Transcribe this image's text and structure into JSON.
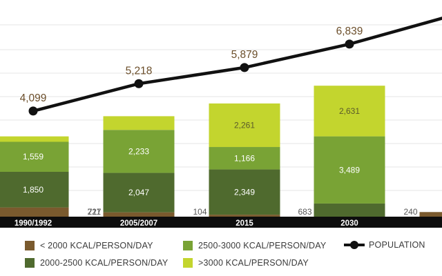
{
  "chart_data": {
    "type": "bar",
    "stacked": true,
    "categories": [
      "1990/1992",
      "2005/2007",
      "2015",
      "2030",
      ""
    ],
    "series": [
      {
        "name": "< 2000 KCAL/PERSON/DAY",
        "color": "#7a5a2e",
        "values": [
          480,
          227,
          104,
          null,
          240
        ]
      },
      {
        "name": "2000-2500 KCAL/PERSON/DAY",
        "color": "#4f6a2e",
        "values": [
          1850,
          2047,
          2349,
          683,
          null
        ]
      },
      {
        "name": "2500-3000 KCAL/PERSON/DAY",
        "color": "#79a335",
        "values": [
          1559,
          2233,
          1166,
          3489,
          null
        ]
      },
      {
        "name": ">3000 KCAL/PERSON/DAY",
        "color": "#c3d52e",
        "values": [
          281,
          711,
          2261,
          2631,
          null
        ]
      }
    ],
    "population": {
      "name": "POPULATION",
      "color": "#111111",
      "values": [
        4099,
        5218,
        5879,
        6839,
        null
      ]
    },
    "grid": true,
    "legend_position": "bottom"
  }
}
